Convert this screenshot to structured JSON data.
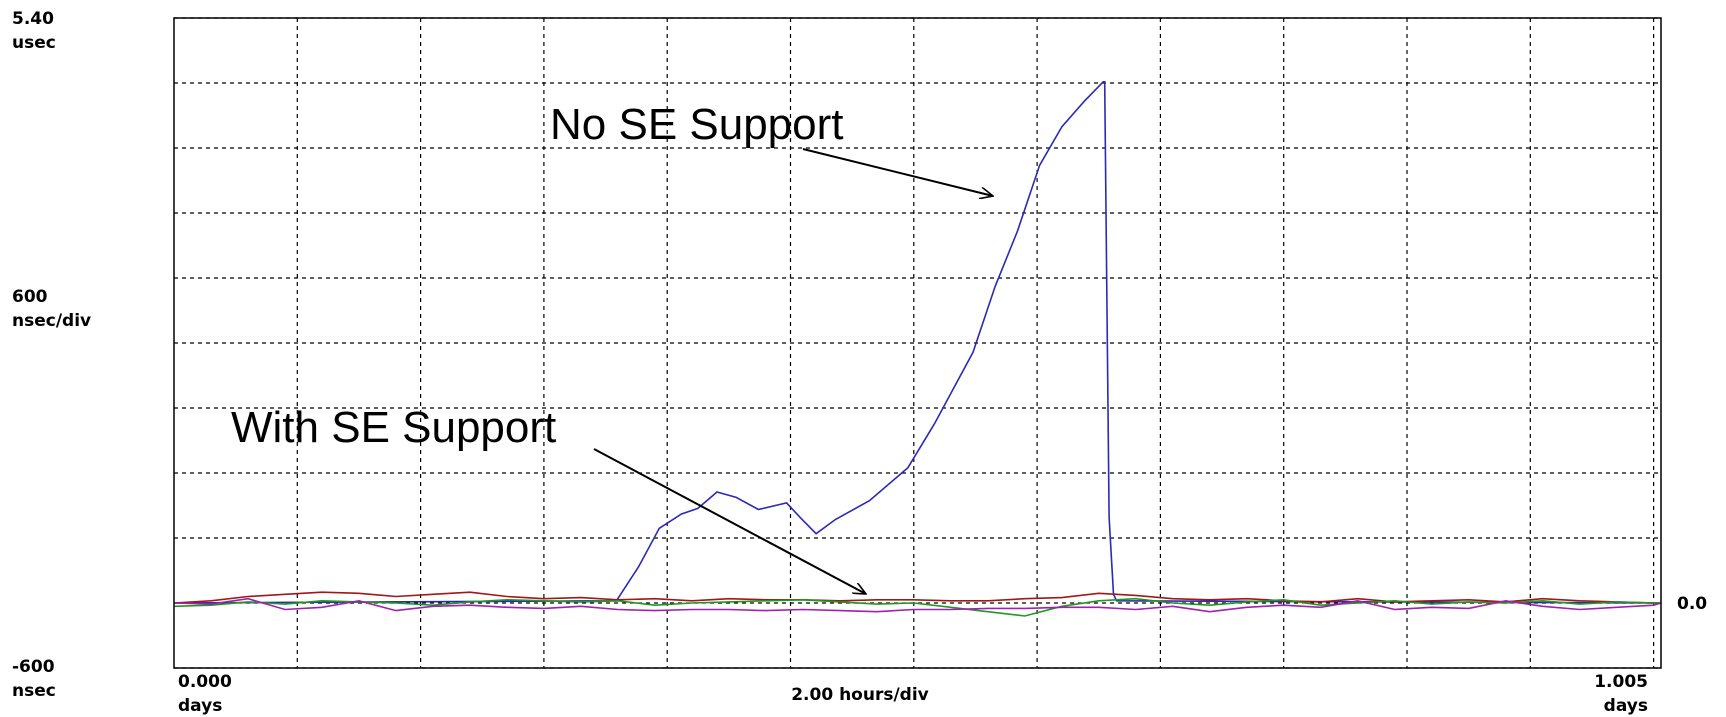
{
  "chart_data": {
    "type": "line",
    "xlim": [
      0,
      1.005
    ],
    "xlim_labels": [
      "0.000",
      "1.005"
    ],
    "x_unit": "days",
    "x_division": {
      "value": 2,
      "label": "2.00 hours/div"
    },
    "ylim": [
      -600,
      5400
    ],
    "yticks": [
      -600,
      0,
      600,
      1200,
      1800,
      2400,
      3000,
      3600,
      4200,
      4800,
      5400
    ],
    "y_labels": [
      {
        "value": 5400,
        "label": "5.40",
        "unit": "usec"
      },
      {
        "value": -600,
        "label": "-600",
        "unit": "nsec"
      }
    ],
    "y_division": {
      "value": 600,
      "label": "600",
      "unit": "nsec/div"
    },
    "zero_label": {
      "value": 0,
      "label": "0.0"
    },
    "grid": true,
    "annotations": [
      {
        "text": "No SE Support"
      },
      {
        "text": "With SE Support"
      }
    ],
    "series": [
      {
        "color": "#2a2ab8",
        "x": [
          0,
          0.299,
          0.314,
          0.328,
          0.343,
          0.354,
          0.367,
          0.38,
          0.395,
          0.414,
          0.423,
          0.434,
          0.447,
          0.47,
          0.496,
          0.514,
          0.54,
          0.555,
          0.57,
          0.585,
          0.6,
          0.615,
          0.628,
          0.629,
          0.632,
          0.635,
          0.637,
          1.005
        ],
        "values": [
          0,
          20,
          335,
          690,
          822,
          873,
          1025,
          975,
          863,
          924,
          792,
          640,
          771,
          944,
          1249,
          1655,
          2314,
          2923,
          3431,
          4040,
          4395,
          4628,
          4811,
          4811,
          792,
          81,
          20,
          0
        ]
      },
      {
        "color": "#a01818",
        "x": [
          0,
          0.025,
          0.05,
          0.075,
          0.1,
          0.125,
          0.15,
          0.175,
          0.2,
          0.225,
          0.25,
          0.275,
          0.3,
          0.325,
          0.35,
          0.375,
          0.4,
          0.425,
          0.45,
          0.475,
          0.5,
          0.525,
          0.55,
          0.575,
          0.6,
          0.625,
          0.65,
          0.675,
          0.7,
          0.725,
          0.75,
          0.775,
          0.8,
          0.825,
          0.85,
          0.875,
          0.9,
          0.925,
          0.95,
          0.975,
          1.0,
          1.005
        ],
        "values": [
          0,
          20,
          60,
          80,
          100,
          90,
          60,
          80,
          100,
          60,
          40,
          50,
          30,
          40,
          20,
          40,
          30,
          30,
          20,
          30,
          30,
          20,
          20,
          40,
          50,
          90,
          70,
          40,
          30,
          40,
          20,
          10,
          40,
          10,
          20,
          30,
          10,
          40,
          20,
          10,
          0,
          0
        ]
      },
      {
        "color": "#1e9a1e",
        "x": [
          0,
          0.025,
          0.05,
          0.075,
          0.1,
          0.125,
          0.15,
          0.175,
          0.2,
          0.225,
          0.25,
          0.275,
          0.3,
          0.325,
          0.35,
          0.375,
          0.4,
          0.425,
          0.45,
          0.475,
          0.5,
          0.525,
          0.55,
          0.575,
          0.6,
          0.625,
          0.65,
          0.675,
          0.7,
          0.725,
          0.75,
          0.775,
          0.8,
          0.825,
          0.85,
          0.875,
          0.9,
          0.925,
          0.95,
          0.975,
          1.0,
          1.005
        ],
        "values": [
          -30,
          -20,
          10,
          -10,
          20,
          10,
          0,
          -20,
          10,
          30,
          20,
          10,
          20,
          -20,
          0,
          10,
          20,
          30,
          10,
          -10,
          0,
          -40,
          -80,
          -120,
          -30,
          20,
          40,
          0,
          -20,
          10,
          30,
          -20,
          0,
          20,
          -10,
          10,
          0,
          20,
          -10,
          10,
          0,
          0
        ]
      },
      {
        "color": "#a020b0",
        "x": [
          0,
          0.025,
          0.05,
          0.075,
          0.1,
          0.125,
          0.15,
          0.175,
          0.2,
          0.225,
          0.25,
          0.275,
          0.3,
          0.325,
          0.35,
          0.375,
          0.4,
          0.425,
          0.45,
          0.475,
          0.5,
          0.525,
          0.55,
          0.575,
          0.6,
          0.625,
          0.65,
          0.675,
          0.7,
          0.725,
          0.75,
          0.775,
          0.8,
          0.825,
          0.85,
          0.875,
          0.9,
          0.925,
          0.95,
          0.975,
          1.0,
          1.005
        ],
        "values": [
          0,
          -10,
          40,
          -60,
          -40,
          20,
          -70,
          -30,
          -20,
          -40,
          -50,
          -30,
          -60,
          -70,
          -60,
          -60,
          -70,
          -60,
          -70,
          -80,
          -60,
          -60,
          -50,
          -50,
          -40,
          -40,
          -60,
          -30,
          -80,
          -40,
          -20,
          -40,
          20,
          -60,
          -40,
          -50,
          20,
          -30,
          -60,
          -40,
          -20,
          0
        ]
      }
    ]
  }
}
